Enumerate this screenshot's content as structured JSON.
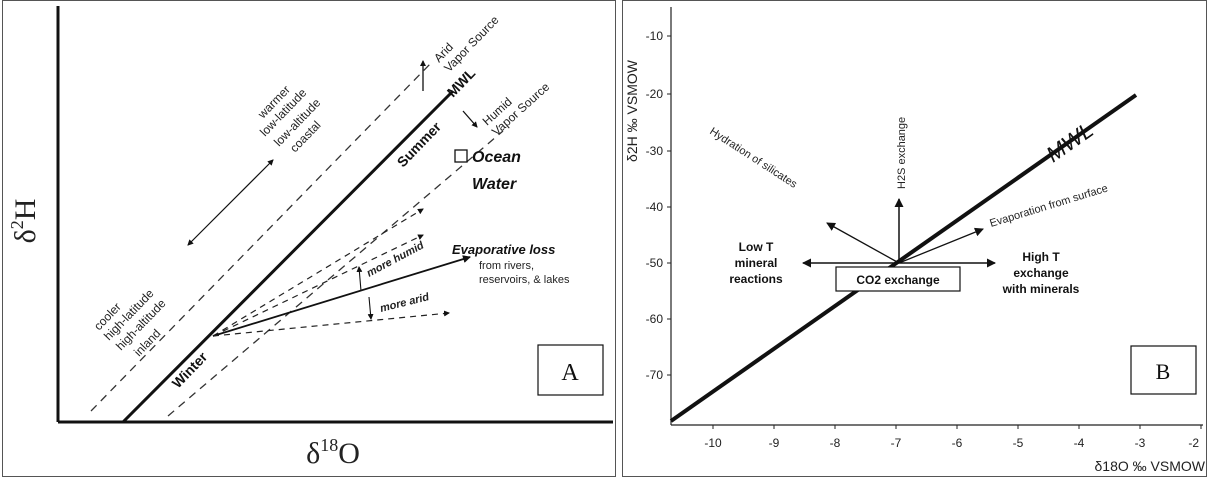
{
  "panel_a": {
    "box_label": "A",
    "x_axis_label_main": "δ",
    "x_axis_label_sup": "18",
    "x_axis_label_end": "O",
    "y_axis_label_main": "δ",
    "y_axis_label_sup": "2",
    "y_axis_label_end": "H",
    "mwl_label": "MWL",
    "summer_label": "Summer",
    "winter_label": "Winter",
    "arid_source_line1": "Arid",
    "arid_source_line2": "Vapor Source",
    "humid_source_line1": "Humid",
    "humid_source_line2": "Vapor Source",
    "warm_lines": [
      "warmer",
      "low-latitude",
      "low-altitude",
      "coastal"
    ],
    "cool_lines": [
      "cooler",
      "high-latitude",
      "high-altitude",
      "inland"
    ],
    "ocean_water_line1": "Ocean",
    "ocean_water_line2": "Water",
    "evap_title": "Evaporative loss",
    "evap_sub1": "from rivers,",
    "evap_sub2": "reservoirs, & lakes",
    "more_humid": "more humid",
    "more_arid": "more arid"
  },
  "panel_b": {
    "box_label": "B",
    "x_axis_label": "δ18O ‰ VSMOW",
    "y_axis_label": "δ2H ‰ VSMOW",
    "mwl_label": "MWL",
    "x_ticks": [
      "-10",
      "-9",
      "-8",
      "-7",
      "-6",
      "-5",
      "-4",
      "-3",
      "-2"
    ],
    "y_ticks": [
      "-10",
      "-20",
      "-30",
      "-40",
      "-50",
      "-60",
      "-70"
    ],
    "hydration": "Hydration of silicates",
    "h2s": "H2S exchange",
    "evaporation": "Evaporation from surface",
    "co2": "CO2 exchange",
    "low_t_lines": [
      "Low T",
      "mineral",
      "reactions"
    ],
    "high_t_lines": [
      "High T",
      "exchange",
      "with minerals"
    ]
  }
}
